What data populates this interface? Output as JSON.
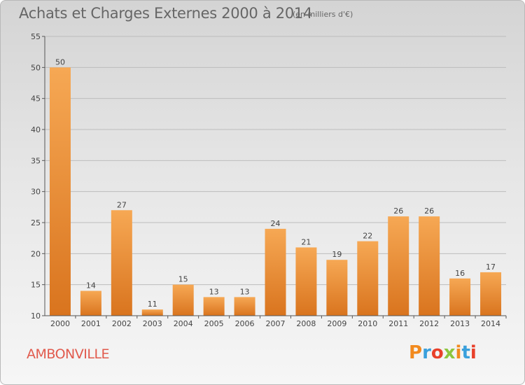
{
  "header": {
    "title": "Achats et Charges Externes 2000 à 2014",
    "subtitle": "(en milliers d'€)"
  },
  "footer": {
    "commune": "AMBONVILLE",
    "logo_text": "Proxiti",
    "logo_colors": [
      "#f28a1e",
      "#3aa0dc",
      "#e8402a",
      "#8cc63e",
      "#f28a1e",
      "#3aa0dc",
      "#e8402a"
    ]
  },
  "colors": {
    "bar_light": "#f6a854",
    "bar_dark": "#d9741e",
    "grid": "#bdbdbd",
    "axis": "#555555"
  },
  "chart_data": {
    "type": "bar",
    "title": "Achats et Charges Externes 2000 à 2014",
    "subtitle": "(en milliers d'€)",
    "categories": [
      "2000",
      "2001",
      "2002",
      "2003",
      "2004",
      "2005",
      "2006",
      "2007",
      "2008",
      "2009",
      "2010",
      "2011",
      "2012",
      "2013",
      "2014"
    ],
    "values": [
      50,
      14,
      27,
      11,
      15,
      13,
      13,
      24,
      21,
      19,
      22,
      26,
      26,
      16,
      17
    ],
    "ylim": [
      10,
      55
    ],
    "yticks": [
      10,
      15,
      20,
      25,
      30,
      35,
      40,
      45,
      50,
      55
    ],
    "grid": true,
    "xlabel": "",
    "ylabel": ""
  }
}
